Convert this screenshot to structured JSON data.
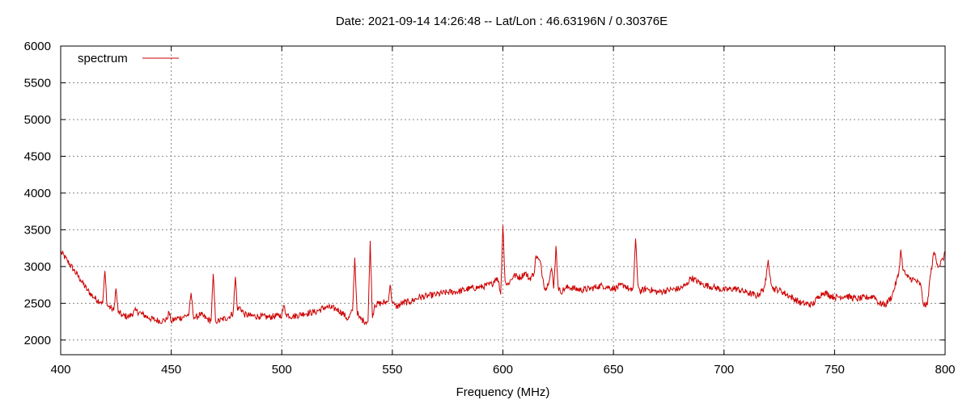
{
  "chart_data": {
    "type": "line",
    "title": "Date: 2021-09-14 14:26:48  --  Lat/Lon : 46.63196N / 0.30376E",
    "xlabel": "Frequency (MHz)",
    "ylabel": "",
    "xlim": [
      400,
      800
    ],
    "ylim": [
      1800,
      6000
    ],
    "xticks": [
      400,
      450,
      500,
      550,
      600,
      650,
      700,
      750,
      800
    ],
    "yticks": [
      2000,
      2500,
      3000,
      3500,
      4000,
      4500,
      5000,
      5500,
      6000
    ],
    "grid": true,
    "legend": "top-left",
    "series": [
      {
        "name": "spectrum",
        "color": "#cc0000",
        "x": [
          400,
          403,
          406,
          409,
          412,
          415,
          418,
          419,
          420,
          421,
          423,
          424,
          425,
          426,
          428,
          431,
          434,
          437,
          440,
          443,
          446,
          448,
          449,
          450,
          452,
          455,
          458,
          459,
          460,
          461,
          463,
          466,
          468,
          469,
          470,
          471,
          473,
          476,
          478,
          479,
          480,
          481,
          483,
          486,
          490,
          494,
          498,
          500,
          501,
          502,
          505,
          510,
          515,
          520,
          525,
          528,
          530,
          532,
          533,
          534,
          535,
          537,
          539,
          540,
          541,
          542,
          545,
          548,
          549,
          550,
          551,
          552,
          555,
          558,
          562,
          566,
          570,
          575,
          580,
          585,
          590,
          595,
          597,
          598,
          599,
          600,
          601,
          602,
          605,
          608,
          610,
          612,
          614,
          615,
          616,
          617,
          618,
          619,
          620,
          622,
          623,
          624,
          625,
          626,
          628,
          630,
          635,
          640,
          643,
          645,
          650,
          655,
          658,
          659,
          660,
          661,
          662,
          665,
          670,
          675,
          680,
          683,
          685,
          690,
          695,
          700,
          705,
          710,
          715,
          718,
          719,
          720,
          721,
          722,
          725,
          730,
          735,
          740,
          743,
          745,
          750,
          755,
          760,
          765,
          768,
          770,
          773,
          776,
          779,
          780,
          781,
          783,
          786,
          789,
          790,
          791,
          792,
          793,
          795,
          797,
          799,
          800
        ],
        "values": [
          3200,
          3080,
          2950,
          2820,
          2680,
          2580,
          2520,
          2500,
          2940,
          2470,
          2430,
          2400,
          2700,
          2380,
          2330,
          2320,
          2400,
          2350,
          2300,
          2270,
          2260,
          2280,
          2380,
          2250,
          2290,
          2310,
          2350,
          2640,
          2330,
          2300,
          2350,
          2290,
          2260,
          2900,
          2270,
          2250,
          2280,
          2310,
          2370,
          2860,
          2400,
          2450,
          2350,
          2330,
          2320,
          2310,
          2330,
          2340,
          2470,
          2350,
          2320,
          2360,
          2380,
          2450,
          2420,
          2350,
          2280,
          2400,
          3120,
          2400,
          2300,
          2260,
          2250,
          3350,
          2300,
          2480,
          2500,
          2520,
          2750,
          2500,
          2480,
          2450,
          2510,
          2520,
          2580,
          2600,
          2620,
          2650,
          2660,
          2700,
          2720,
          2760,
          2850,
          2800,
          2620,
          3560,
          2800,
          2750,
          2880,
          2850,
          2920,
          2830,
          2900,
          3150,
          3100,
          3050,
          2850,
          2700,
          2720,
          2980,
          2700,
          3280,
          2720,
          2650,
          2700,
          2720,
          2680,
          2700,
          2730,
          2740,
          2700,
          2750,
          2660,
          2720,
          3380,
          2780,
          2660,
          2700,
          2650,
          2680,
          2700,
          2750,
          2850,
          2760,
          2720,
          2680,
          2700,
          2650,
          2600,
          2700,
          2820,
          3090,
          2850,
          2700,
          2680,
          2590,
          2500,
          2480,
          2600,
          2650,
          2580,
          2600,
          2560,
          2580,
          2600,
          2500,
          2480,
          2600,
          2900,
          3230,
          2950,
          2850,
          2820,
          2750,
          2500,
          2470,
          2480,
          2800,
          3200,
          3000,
          3100,
          3180
        ]
      }
    ]
  }
}
